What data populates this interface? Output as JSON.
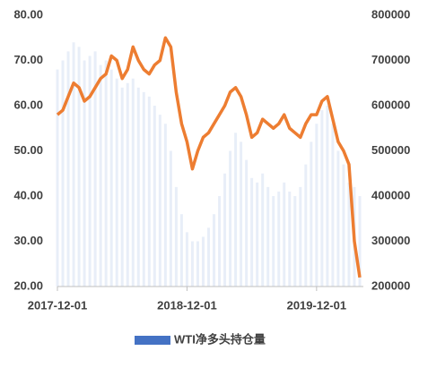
{
  "chart_data": {
    "type": "bar-line",
    "categories": [
      "2017-12-01",
      null,
      null,
      null,
      null,
      null,
      null,
      null,
      null,
      null,
      null,
      null,
      null,
      null,
      null,
      null,
      null,
      null,
      null,
      null,
      null,
      null,
      null,
      null,
      "2018-12-01",
      null,
      null,
      null,
      null,
      null,
      null,
      null,
      null,
      null,
      null,
      null,
      null,
      null,
      null,
      null,
      null,
      null,
      null,
      null,
      null,
      null,
      null,
      null,
      "2019-12-01",
      null,
      null,
      null,
      null,
      null,
      null,
      null,
      null
    ],
    "series": [
      {
        "name": "WTI净多头持仓量",
        "color": "#4472c4",
        "axis": "y2",
        "kind": "bar",
        "values": [
          680000,
          700000,
          720000,
          740000,
          730000,
          700000,
          710000,
          720000,
          690000,
          700000,
          680000,
          660000,
          640000,
          650000,
          660000,
          640000,
          630000,
          620000,
          600000,
          580000,
          560000,
          500000,
          420000,
          360000,
          320000,
          300000,
          300000,
          310000,
          330000,
          360000,
          400000,
          450000,
          500000,
          540000,
          520000,
          480000,
          440000,
          430000,
          450000,
          420000,
          400000,
          410000,
          430000,
          410000,
          400000,
          420000,
          470000,
          520000,
          560000,
          590000,
          600000,
          560000,
          500000,
          470000,
          430000,
          420000,
          400000
        ]
      },
      {
        "color": "#ed7d31",
        "kind": "line",
        "values": [
          58,
          59,
          62,
          65,
          64,
          61,
          62,
          64,
          66,
          67,
          71,
          70,
          66,
          68,
          73,
          70,
          68,
          67,
          69,
          70,
          75,
          73,
          63,
          56,
          52,
          46,
          50,
          53,
          54,
          56,
          58,
          60,
          63,
          64,
          62,
          58,
          53,
          54,
          57,
          56,
          55,
          56,
          58,
          55,
          54,
          53,
          56,
          58,
          58,
          61,
          62,
          57,
          52,
          50,
          47,
          30,
          22
        ]
      }
    ],
    "ylim": [
      20,
      80
    ],
    "yticks": [
      {
        "value": 20,
        "label": "20.00"
      },
      {
        "value": 30,
        "label": "30.00"
      },
      {
        "value": 40,
        "label": "40.00"
      },
      {
        "value": 50,
        "label": "50.00"
      },
      {
        "value": 60,
        "label": "60.00"
      },
      {
        "value": 70,
        "label": "70.00"
      },
      {
        "value": 80,
        "label": "80.00"
      }
    ],
    "y2lim": [
      200000,
      800000
    ],
    "y2ticks": [
      200000,
      300000,
      400000,
      500000,
      600000,
      700000,
      800000
    ]
  }
}
